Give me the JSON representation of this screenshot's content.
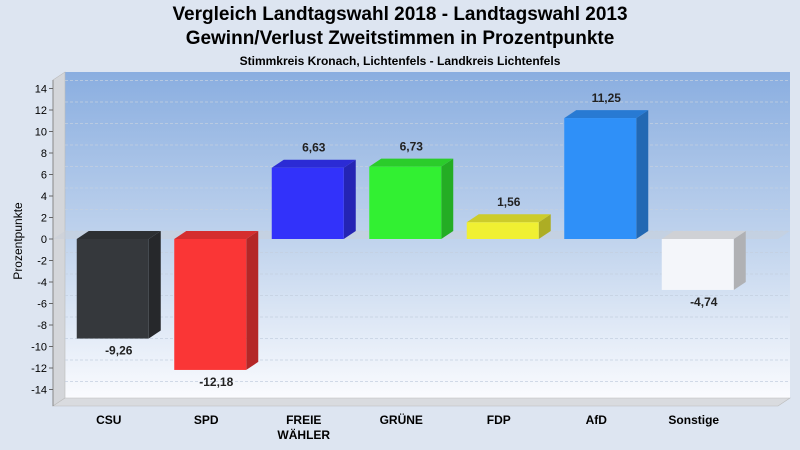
{
  "chart_data": {
    "type": "bar",
    "title": "Vergleich Landtagswahl 2018 - Landtagswahl 2013",
    "title_line2": "Gewinn/Verlust Zweitstimmen in Prozentpunkte",
    "subtitle": "Stimmkreis Kronach, Lichtenfels - Landkreis Lichtenfels",
    "ylabel": "Prozentpunkte",
    "xlabel": "",
    "ylim": [
      -15,
      15
    ],
    "yticks": [
      14,
      12,
      10,
      8,
      6,
      4,
      2,
      0,
      -2,
      -4,
      -6,
      -8,
      -10,
      -12,
      -14
    ],
    "categories": [
      [
        "CSU"
      ],
      [
        "SPD"
      ],
      [
        "FREIE",
        "WÄHLER"
      ],
      [
        "GRÜNE"
      ],
      [
        "FDP"
      ],
      [
        "AfD"
      ],
      [
        "Sonstige"
      ]
    ],
    "values": [
      -9.26,
      -12.18,
      6.63,
      6.73,
      1.56,
      11.25,
      -4.74
    ],
    "value_labels": [
      "-9,26",
      "-12,18",
      "6,63",
      "6,73",
      "1,56",
      "11,25",
      "-4,74"
    ],
    "colors": [
      "#35383c",
      "#fa3636",
      "#3232fa",
      "#32f032",
      "#f0f032",
      "#2f90f8",
      "#f4f6fa"
    ],
    "grid": true,
    "legend": "none"
  }
}
